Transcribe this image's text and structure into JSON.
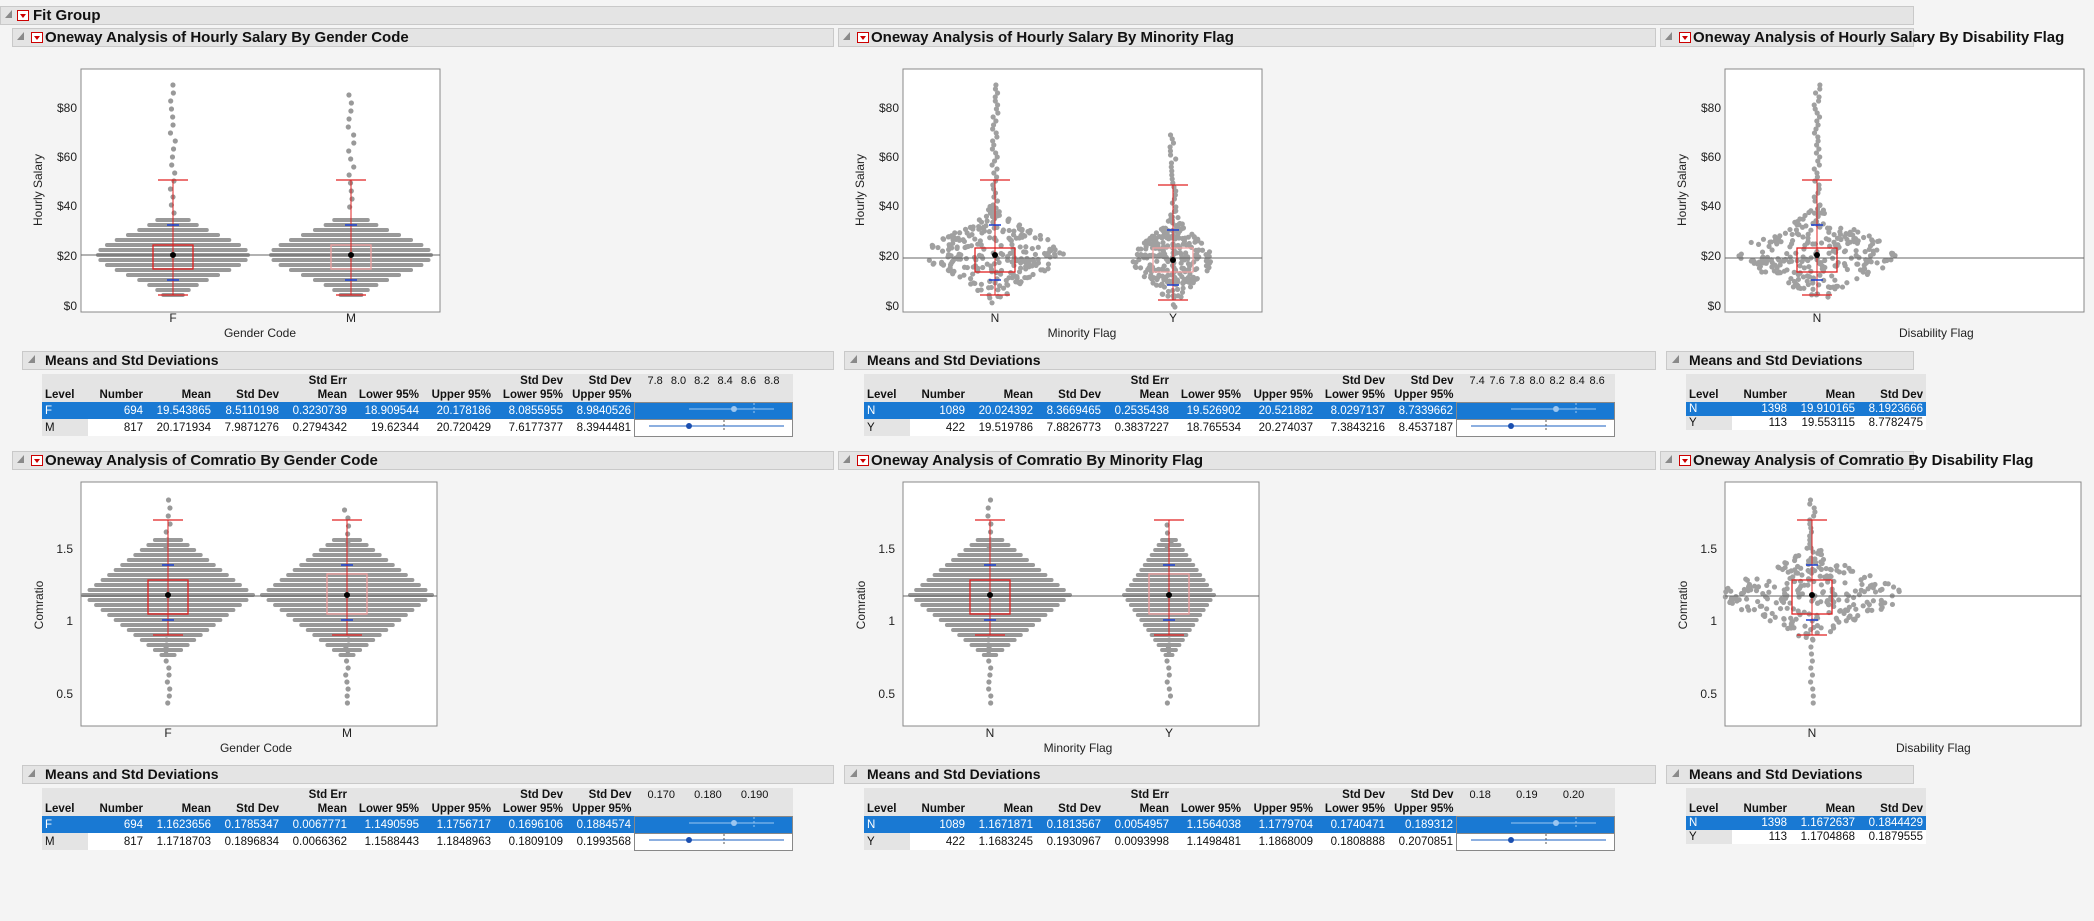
{
  "fit_group": {
    "title": "Fit Group"
  },
  "oneway_titles": {
    "salary_gender": "Oneway Analysis of Hourly Salary By Gender Code",
    "salary_minority": "Oneway Analysis of Hourly Salary By Minority Flag",
    "salary_disability": "Oneway Analysis of Hourly Salary By Disability Flag",
    "comp_gender": "Oneway Analysis of Comratio By Gender Code",
    "comp_minority": "Oneway Analysis of Comratio By Minority Flag",
    "comp_disability": "Oneway Analysis of Comratio By Disability Flag"
  },
  "means_title": "Means and Std Deviations",
  "axis_labels": {
    "hourly_salary": "Hourly Salary",
    "comratio": "Comratio",
    "gender_code": "Gender Code",
    "minority_flag": "Minority Flag",
    "disability_flag": "Disability Flag"
  },
  "salary_ticks": [
    "$80",
    "$60",
    "$40",
    "$20",
    "$0"
  ],
  "comratio_ticks": [
    "1.5",
    "1",
    "0.5"
  ],
  "levels": {
    "f": "F",
    "m": "M",
    "n": "N",
    "y": "Y"
  },
  "table_headers": {
    "level": "Level",
    "number": "Number",
    "mean": "Mean",
    "std_dev": "Std Dev",
    "std_err": "Std Err",
    "mean2": "Mean",
    "lower95": "Lower 95%",
    "upper95": "Upper 95%",
    "sd_lower1": "Std Dev",
    "sd_lower2": "Lower 95%",
    "sd_upper1": "Std Dev",
    "sd_upper2": "Upper 95%"
  },
  "tables": {
    "salary_gender": {
      "scale": [
        "7.8",
        "8.0",
        "8.2",
        "8.4",
        "8.6",
        "8.8"
      ],
      "rows": [
        {
          "level": "F",
          "number": "694",
          "mean": "19.543865",
          "std_dev": "8.5110198",
          "std_err": "0.3230739",
          "lower": "18.909544",
          "upper": "20.178186",
          "sdl": "8.0855955",
          "sdu": "8.9840526"
        },
        {
          "level": "M",
          "number": "817",
          "mean": "20.171934",
          "std_dev": "7.9871276",
          "std_err": "0.2794342",
          "lower": "19.62344",
          "upper": "20.720429",
          "sdl": "7.6177377",
          "sdu": "8.3944481"
        }
      ]
    },
    "salary_minority": {
      "scale": [
        "7.4",
        "7.6",
        "7.8",
        "8.0",
        "8.2",
        "8.4",
        "8.6"
      ],
      "rows": [
        {
          "level": "N",
          "number": "1089",
          "mean": "20.024392",
          "std_dev": "8.3669465",
          "std_err": "0.2535438",
          "lower": "19.526902",
          "upper": "20.521882",
          "sdl": "8.0297137",
          "sdu": "8.7339662"
        },
        {
          "level": "Y",
          "number": "422",
          "mean": "19.519786",
          "std_dev": "7.8826773",
          "std_err": "0.3837227",
          "lower": "18.765534",
          "upper": "20.274037",
          "sdl": "7.3843216",
          "sdu": "8.4537187"
        }
      ]
    },
    "salary_disability": {
      "rows": [
        {
          "level": "N",
          "number": "1398",
          "mean": "19.910165",
          "std_dev": "8.1923666"
        },
        {
          "level": "Y",
          "number": "113",
          "mean": "19.553115",
          "std_dev": "8.7782475"
        }
      ]
    },
    "comp_gender": {
      "scale": [
        "0.170",
        "0.180",
        "0.190"
      ],
      "rows": [
        {
          "level": "F",
          "number": "694",
          "mean": "1.1623656",
          "std_dev": "0.1785347",
          "std_err": "0.0067771",
          "lower": "1.1490595",
          "upper": "1.1756717",
          "sdl": "0.1696106",
          "sdu": "0.1884574"
        },
        {
          "level": "M",
          "number": "817",
          "mean": "1.1718703",
          "std_dev": "0.1896834",
          "std_err": "0.0066362",
          "lower": "1.1588443",
          "upper": "1.1848963",
          "sdl": "0.1809109",
          "sdu": "0.1993568"
        }
      ]
    },
    "comp_minority": {
      "scale": [
        "0.18",
        "0.19",
        "0.20"
      ],
      "rows": [
        {
          "level": "N",
          "number": "1089",
          "mean": "1.1671871",
          "std_dev": "0.1813567",
          "std_err": "0.0054957",
          "lower": "1.1564038",
          "upper": "1.1779704",
          "sdl": "0.1740471",
          "sdu": "0.189312"
        },
        {
          "level": "Y",
          "number": "422",
          "mean": "1.1683245",
          "std_dev": "0.1930967",
          "std_err": "0.0093998",
          "lower": "1.1498481",
          "upper": "1.1868009",
          "sdl": "0.1808888",
          "sdu": "0.2070851"
        }
      ]
    },
    "comp_disability": {
      "rows": [
        {
          "level": "N",
          "number": "1398",
          "mean": "1.1672637",
          "std_dev": "0.1844429"
        },
        {
          "level": "Y",
          "number": "113",
          "mean": "1.1704868",
          "std_dev": "0.1879555"
        }
      ]
    }
  }
}
